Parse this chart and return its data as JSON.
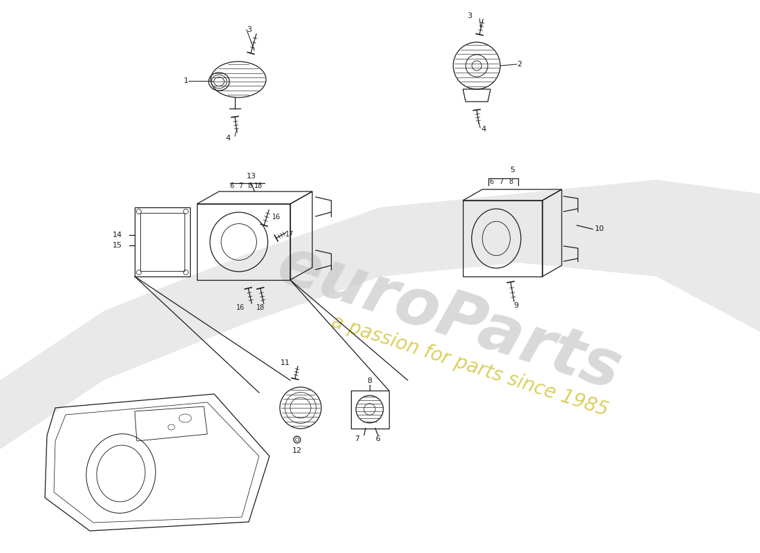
{
  "background_color": "#ffffff",
  "line_color": "#1a1a1a",
  "line_width": 0.9,
  "fig_width": 11.0,
  "fig_height": 8.0,
  "dpi": 100,
  "watermark1": "euroParts",
  "watermark2": "a passion for parts since 1985",
  "wm1_color": "#cccccc",
  "wm2_color": "#d4c840",
  "wm1_size": 68,
  "wm2_size": 20,
  "wm_rotation": -18,
  "swoosh_color": "#d8d8d8",
  "swoosh_alpha": 0.55
}
